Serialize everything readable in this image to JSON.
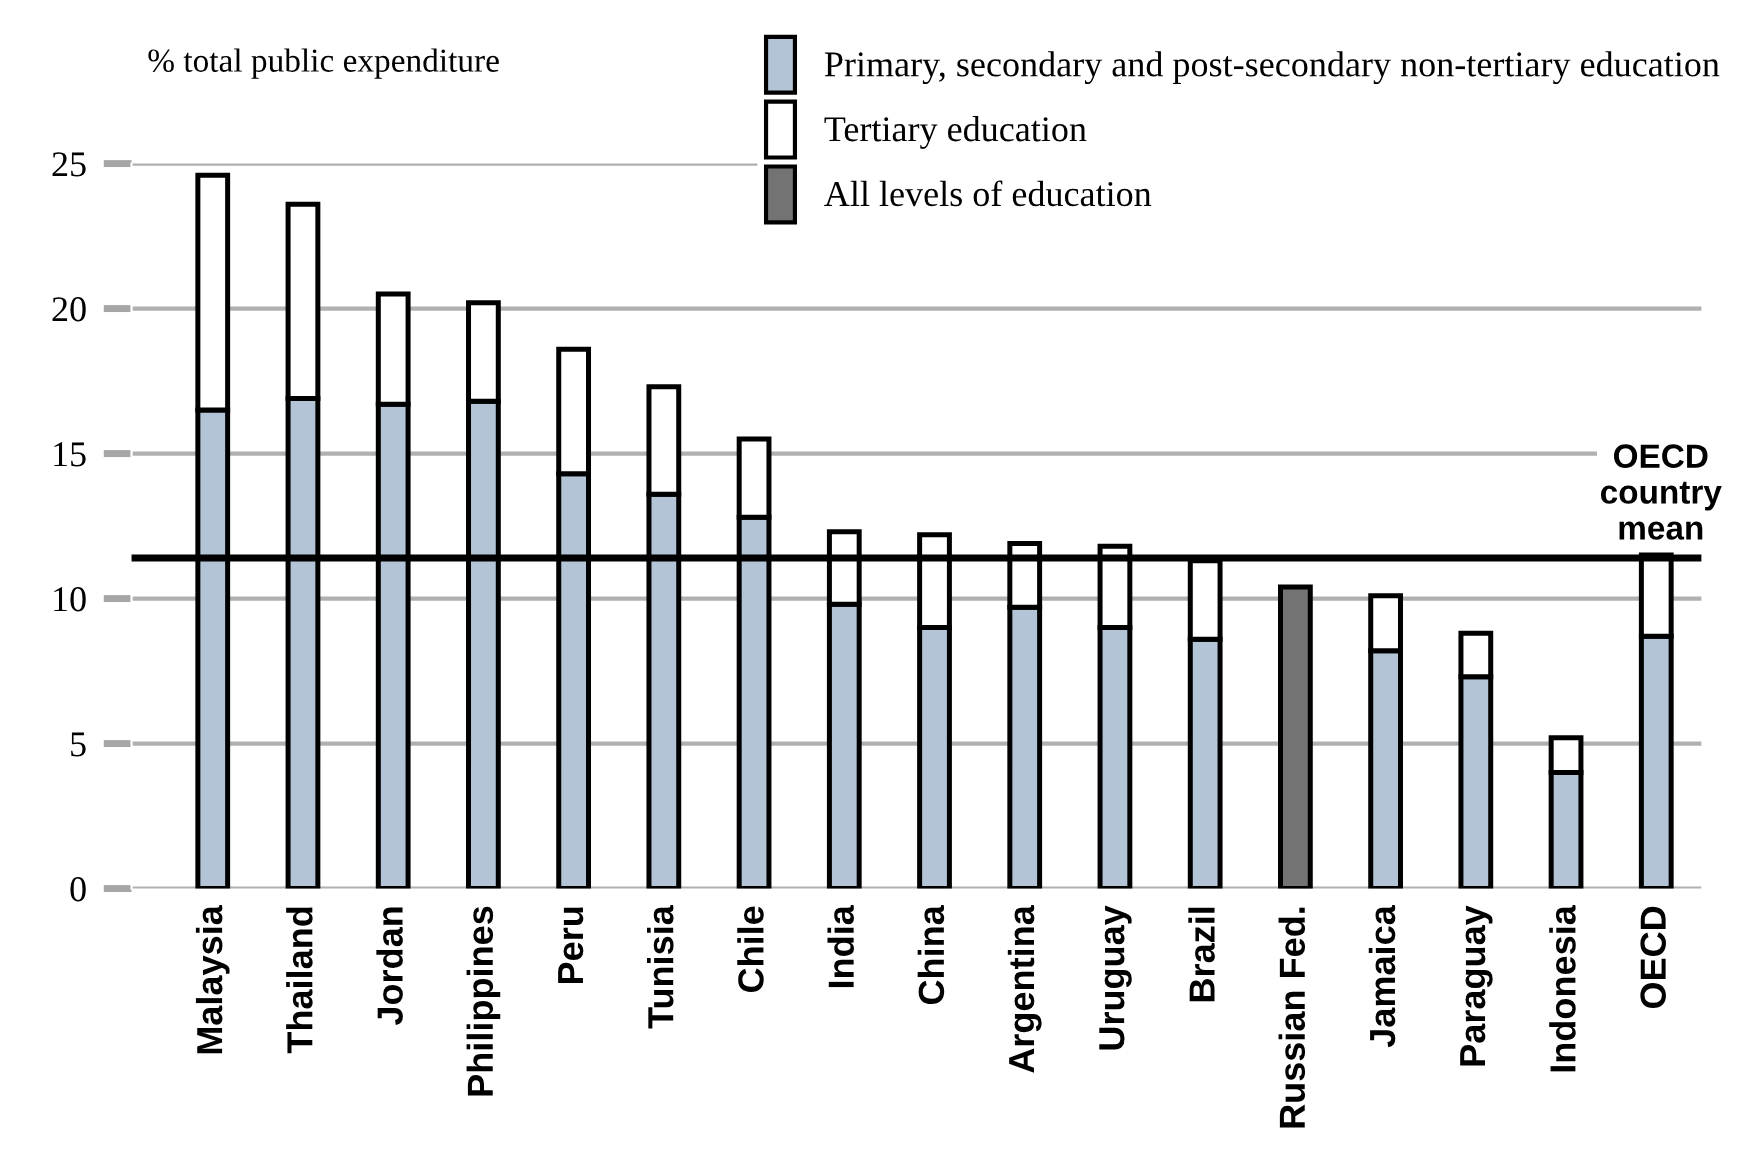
{
  "chart_data": {
    "type": "bar",
    "stacked": true,
    "ylabel": "% total public expenditure",
    "categories": [
      "Malaysia",
      "Thailand",
      "Jordan",
      "Philippines",
      "Peru",
      "Tunisia",
      "Chile",
      "India",
      "China",
      "Argentina",
      "Uruguay",
      "Brazil",
      "Russian Fed.",
      "Jamaica",
      "Paraguay",
      "Indonesia",
      "OECD"
    ],
    "series": [
      {
        "name": "Primary, secondary and post-secondary non-tertiary education",
        "color": "#b3c4d6",
        "values": [
          16.5,
          16.9,
          16.7,
          16.8,
          14.3,
          13.6,
          12.8,
          9.8,
          9.0,
          9.7,
          9.0,
          8.6,
          null,
          8.2,
          7.3,
          4.0,
          8.7
        ]
      },
      {
        "name": "Tertiary education",
        "color": "#ffffff",
        "values": [
          8.1,
          6.7,
          3.8,
          3.4,
          4.3,
          3.7,
          2.7,
          2.5,
          3.2,
          2.2,
          2.8,
          2.7,
          null,
          1.9,
          1.5,
          1.2,
          2.8
        ]
      },
      {
        "name": "All levels of education",
        "color": "#737373",
        "values": [
          null,
          null,
          null,
          null,
          null,
          null,
          null,
          null,
          null,
          null,
          null,
          null,
          10.4,
          null,
          null,
          null,
          null
        ]
      }
    ],
    "ylim": [
      0,
      25
    ],
    "yticks": [
      0,
      5,
      10,
      15,
      20,
      25
    ],
    "grid": "y",
    "legend": "top right",
    "ref_lines": [
      {
        "axis": "y",
        "value": 11.4,
        "label": "OECD\ncountry\nmean",
        "color": "#000000"
      }
    ]
  }
}
